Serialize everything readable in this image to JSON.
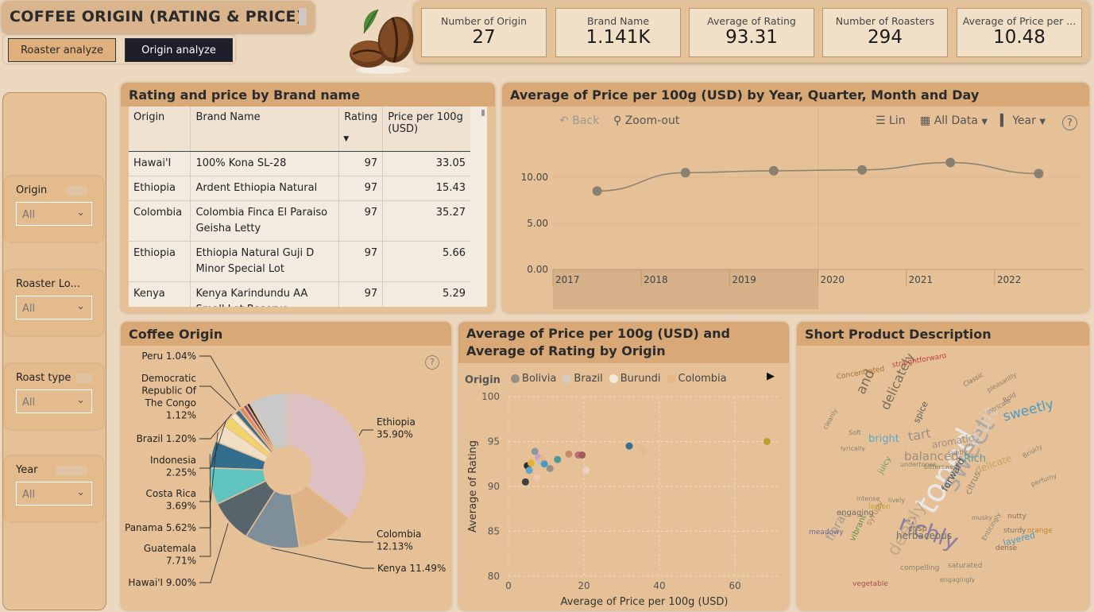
{
  "header": {
    "title": "COFFEE ORIGIN (RATING & PRICE)",
    "tabs": [
      {
        "label": "Roaster analyze",
        "active": false
      },
      {
        "label": "Origin analyze",
        "active": true
      }
    ]
  },
  "kpis": [
    {
      "label": "Number of Origin",
      "value": "27"
    },
    {
      "label": "Brand Name",
      "value": "1.141K"
    },
    {
      "label": "Average of Rating",
      "value": "93.31"
    },
    {
      "label": "Number of Roasters",
      "value": "294"
    },
    {
      "label": "Average of Price per ...",
      "value": "10.48"
    }
  ],
  "slicers": [
    {
      "label": "Origin",
      "value": "All"
    },
    {
      "label": "Roaster Lo...",
      "value": "All"
    },
    {
      "label": "Roast type",
      "value": "All"
    },
    {
      "label": "Year",
      "value": "All"
    }
  ],
  "table": {
    "title": "Rating and price by Brand name",
    "columns": [
      "Origin",
      "Brand Name",
      "Rating",
      "Price per 100g (USD)"
    ],
    "sort_icon": "sort-desc-icon",
    "rows": [
      {
        "origin": "Hawai'I",
        "brand": "100% Kona SL-28",
        "rating": "97",
        "price": "33.05"
      },
      {
        "origin": "Ethiopia",
        "brand": "Ardent Ethiopia Natural",
        "rating": "97",
        "price": "15.43"
      },
      {
        "origin": "Colombia",
        "brand": "Colombia Finca El Paraiso Geisha Letty",
        "rating": "97",
        "price": "35.27"
      },
      {
        "origin": "Ethiopia",
        "brand": "Ethiopia Natural Guji D Minor Special Lot",
        "rating": "97",
        "price": "5.66"
      },
      {
        "origin": "Kenya",
        "brand": "Kenya Karindundu AA Small Lot Reserve",
        "rating": "97",
        "price": "5.29"
      }
    ]
  },
  "line_toolbar": {
    "back": "Back",
    "zoom_out": "Zoom-out",
    "lin": "Lin",
    "all_data": "All Data",
    "year": "Year",
    "help": "?"
  },
  "chart_data": [
    {
      "type": "line",
      "title": "Average of Price per 100g (USD) by Year, Quarter, Month and Day",
      "x": [
        "2017",
        "2018",
        "2019",
        "2020",
        "2021",
        "2022"
      ],
      "y": [
        8.5,
        10.5,
        10.7,
        10.8,
        11.6,
        10.4
      ],
      "x_ticks": [
        "2017",
        "2018",
        "2019",
        "2020",
        "2021",
        "2022"
      ],
      "y_ticks": [
        "0.00",
        "5.00",
        "10.00"
      ],
      "ylim": [
        0,
        12.5
      ],
      "color": "#8a8070",
      "grid": true
    },
    {
      "type": "pie",
      "title": "Coffee Origin",
      "slices": [
        {
          "label": "Ethiopia",
          "pct": "35.90%",
          "value": 35.9,
          "color": "#dcc0c3"
        },
        {
          "label": "Colombia",
          "pct": "12.13%",
          "value": 12.13,
          "color": "#dfb386"
        },
        {
          "label": "Kenya",
          "pct": "11.49%",
          "value": 11.49,
          "color": "#7f8f99"
        },
        {
          "label": "Hawai'I",
          "pct": "9.00%",
          "value": 9.0,
          "color": "#58646b"
        },
        {
          "label": "Guatemala",
          "pct": "7.71%",
          "value": 7.71,
          "color": "#5fc3c0"
        },
        {
          "label": "Panama",
          "pct": "5.62%",
          "value": 5.62,
          "color": "#336f8c"
        },
        {
          "label": "Costa Rica",
          "pct": "3.69%",
          "value": 3.69,
          "color": "#f1dfc4"
        },
        {
          "label": "Indonesia",
          "pct": "2.25%",
          "value": 2.25,
          "color": "#f0d46a"
        },
        {
          "label": "Brazil",
          "pct": "1.20%",
          "value": 1.2,
          "color": "#f5ead7"
        },
        {
          "label": "Democratic Republic Of The Congo",
          "pct": "1.12%",
          "value": 1.12,
          "color": "#3d6c86"
        },
        {
          "label": "Peru",
          "pct": "1.04%",
          "value": 1.04,
          "color": "#e18a63"
        },
        {
          "label": "",
          "pct": "",
          "value": 0.8,
          "color": "#8a4b55"
        },
        {
          "label": "",
          "pct": "",
          "value": 0.7,
          "color": "#2d2d2d"
        },
        {
          "label": "",
          "pct": "",
          "value": 8.25,
          "color": "#c9c9c9"
        }
      ]
    },
    {
      "type": "scatter",
      "title": "Average of Price per 100g (USD) and Average of Rating by Origin",
      "xlabel": "Average of Price per 100g (USD)",
      "ylabel": "Average of Rating",
      "legend_title": "Origin",
      "legend": [
        {
          "name": "Bolivia",
          "color": "#9a8f84"
        },
        {
          "name": "Brazil",
          "color": "#d6ccbf"
        },
        {
          "name": "Burundi",
          "color": "#f4e8d8"
        },
        {
          "name": "Colombia",
          "color": "#e9b684"
        }
      ],
      "xlim": [
        0,
        72
      ],
      "ylim": [
        80,
        100
      ],
      "x_ticks": [
        "0",
        "20",
        "40",
        "60"
      ],
      "y_ticks": [
        "80",
        "85",
        "90",
        "95",
        "100"
      ],
      "points": [
        {
          "x": 4.5,
          "y": 90.5,
          "color": "#3f3f3f"
        },
        {
          "x": 5.0,
          "y": 92.3,
          "color": "#2e2e2e"
        },
        {
          "x": 5.5,
          "y": 91.8,
          "color": "#5fa6c8"
        },
        {
          "x": 6.0,
          "y": 92.6,
          "color": "#e2b33b"
        },
        {
          "x": 7.0,
          "y": 93.9,
          "color": "#8a97a0"
        },
        {
          "x": 7.5,
          "y": 91.0,
          "color": "#f0c8b0"
        },
        {
          "x": 8.0,
          "y": 93.2,
          "color": "#c7a0c8"
        },
        {
          "x": 8.5,
          "y": 92.8,
          "color": "#a8c6d9"
        },
        {
          "x": 9.0,
          "y": 93.0,
          "color": "#e9b684"
        },
        {
          "x": 9.5,
          "y": 92.5,
          "color": "#4a9ac4"
        },
        {
          "x": 11.0,
          "y": 92.0,
          "color": "#9a8f84"
        },
        {
          "x": 13.0,
          "y": 93.0,
          "color": "#4c9a96"
        },
        {
          "x": 16.0,
          "y": 93.6,
          "color": "#c58b68"
        },
        {
          "x": 18.5,
          "y": 93.5,
          "color": "#c07070"
        },
        {
          "x": 19.5,
          "y": 93.5,
          "color": "#a55a60"
        },
        {
          "x": 20.5,
          "y": 91.8,
          "color": "#efd0c3"
        },
        {
          "x": 32.0,
          "y": 94.5,
          "color": "#3a6f8f"
        },
        {
          "x": 35.5,
          "y": 94.0,
          "color": "#e3bb8f"
        },
        {
          "x": 68.5,
          "y": 95.0,
          "color": "#bca035"
        }
      ]
    }
  ],
  "wordcloud": {
    "title": "Short Product Description",
    "words": [
      {
        "t": "toned",
        "c": "#e8e8e8",
        "s": 40,
        "r": -60
      },
      {
        "t": "sweet",
        "c": "#b0a8a0",
        "s": 34,
        "r": -60
      },
      {
        "t": "richly",
        "c": "#8a7ea0",
        "s": 28,
        "r": 20
      },
      {
        "t": "fruit",
        "c": "#d6cfc5",
        "s": 26,
        "r": -60
      },
      {
        "t": "deeply",
        "c": "#c3a98c",
        "s": 22,
        "r": -60
      },
      {
        "t": "sweetly",
        "c": "#4a9ac4",
        "s": 17,
        "r": -15
      },
      {
        "t": "delicately",
        "c": "#7a6a5a",
        "s": 16,
        "r": -65
      },
      {
        "t": "tart",
        "c": "#9a8f84",
        "s": 16,
        "r": -10
      },
      {
        "t": "balanced",
        "c": "#9a8f84",
        "s": 15,
        "r": 0
      },
      {
        "t": "floral",
        "c": "#a09a90",
        "s": 15,
        "r": -60
      },
      {
        "t": "and",
        "c": "#7a6a5a",
        "s": 17,
        "r": -65
      },
      {
        "t": "Rich",
        "c": "#5a9aa0",
        "s": 13,
        "r": 0
      },
      {
        "t": "bright",
        "c": "#5fa6c8",
        "s": 13,
        "r": 0
      },
      {
        "t": "herbaceous",
        "c": "#6a6a6a",
        "s": 12,
        "r": 0
      },
      {
        "t": "delicate",
        "c": "#c0a060",
        "s": 12,
        "r": -20
      },
      {
        "t": "forward",
        "c": "#3a4a60",
        "s": 12,
        "r": -60
      },
      {
        "t": "aromatic",
        "c": "#9a8f84",
        "s": 12,
        "r": -10
      },
      {
        "t": "crisp",
        "c": "#7a6a5a",
        "s": 10,
        "r": 0
      },
      {
        "t": "layered",
        "c": "#4a9ac4",
        "s": 11,
        "r": -15
      },
      {
        "t": "spice",
        "c": "#5a5a5a",
        "s": 11,
        "r": -65
      },
      {
        "t": "citrus",
        "c": "#8a8070",
        "s": 11,
        "r": -65
      },
      {
        "t": "juicy",
        "c": "#6a9a60",
        "s": 10,
        "r": -60
      },
      {
        "t": "vibrant",
        "c": "#5a8a50",
        "s": 10,
        "r": -65
      },
      {
        "t": "syrupy",
        "c": "#b08a60",
        "s": 10,
        "r": -60
      },
      {
        "t": "engaging",
        "c": "#6a6a6a",
        "s": 10,
        "r": 0
      },
      {
        "t": "lemon",
        "c": "#c0a030",
        "s": 9,
        "r": 0
      },
      {
        "t": "nutty",
        "c": "#8a7050",
        "s": 9,
        "r": 0
      },
      {
        "t": "orange",
        "c": "#c08030",
        "s": 9,
        "r": 0
      },
      {
        "t": "vegetable",
        "c": "#a05050",
        "s": 9,
        "r": 0
      },
      {
        "t": "meadowy",
        "c": "#6a6aa0",
        "s": 9,
        "r": 0
      },
      {
        "t": "sturdy",
        "c": "#7a7060",
        "s": 9,
        "r": 0
      },
      {
        "t": "dense",
        "c": "#8a6a50",
        "s": 9,
        "r": 0
      },
      {
        "t": "saturated",
        "c": "#8a8070",
        "s": 9,
        "r": 0
      },
      {
        "t": "compelling",
        "c": "#8a8070",
        "s": 9,
        "r": 0
      },
      {
        "t": "Concentrated",
        "c": "#a07030",
        "s": 9,
        "r": -10
      },
      {
        "t": "straightforward",
        "c": "#c04040",
        "s": 9,
        "r": -10
      },
      {
        "t": "Classic",
        "c": "#7a7060",
        "s": 8,
        "r": -30
      },
      {
        "t": "pleasantly",
        "c": "#8a8070",
        "s": 8,
        "r": -30
      },
      {
        "t": "Bold",
        "c": "#8a8070",
        "s": 8,
        "r": -30
      },
      {
        "t": "intricate",
        "c": "#8a8070",
        "s": 8,
        "r": -30
      },
      {
        "t": "Briskly",
        "c": "#8a8070",
        "s": 8,
        "r": -30
      },
      {
        "t": "perfumy",
        "c": "#8a8070",
        "s": 8,
        "r": -20
      },
      {
        "t": "Soft",
        "c": "#8a8070",
        "s": 8,
        "r": 0
      },
      {
        "t": "lively",
        "c": "#8a8070",
        "s": 8,
        "r": 0
      },
      {
        "t": "intense",
        "c": "#8a8070",
        "s": 8,
        "r": 0
      },
      {
        "t": "subtly",
        "c": "#8a8070",
        "s": 8,
        "r": 0
      },
      {
        "t": "undertones",
        "c": "#8a8070",
        "s": 8,
        "r": 0
      },
      {
        "t": "bittersweet",
        "c": "#8a8070",
        "s": 8,
        "r": 0
      },
      {
        "t": "lyrically",
        "c": "#8a8070",
        "s": 8,
        "r": 0
      },
      {
        "t": "cleanly",
        "c": "#8a8070",
        "s": 8,
        "r": -60
      },
      {
        "t": "Enticingly",
        "c": "#8a8070",
        "s": 8,
        "r": -60
      },
      {
        "t": "musky",
        "c": "#8a8070",
        "s": 8,
        "r": 0
      },
      {
        "t": "engagingly",
        "c": "#8a8070",
        "s": 8,
        "r": 0
      }
    ]
  }
}
